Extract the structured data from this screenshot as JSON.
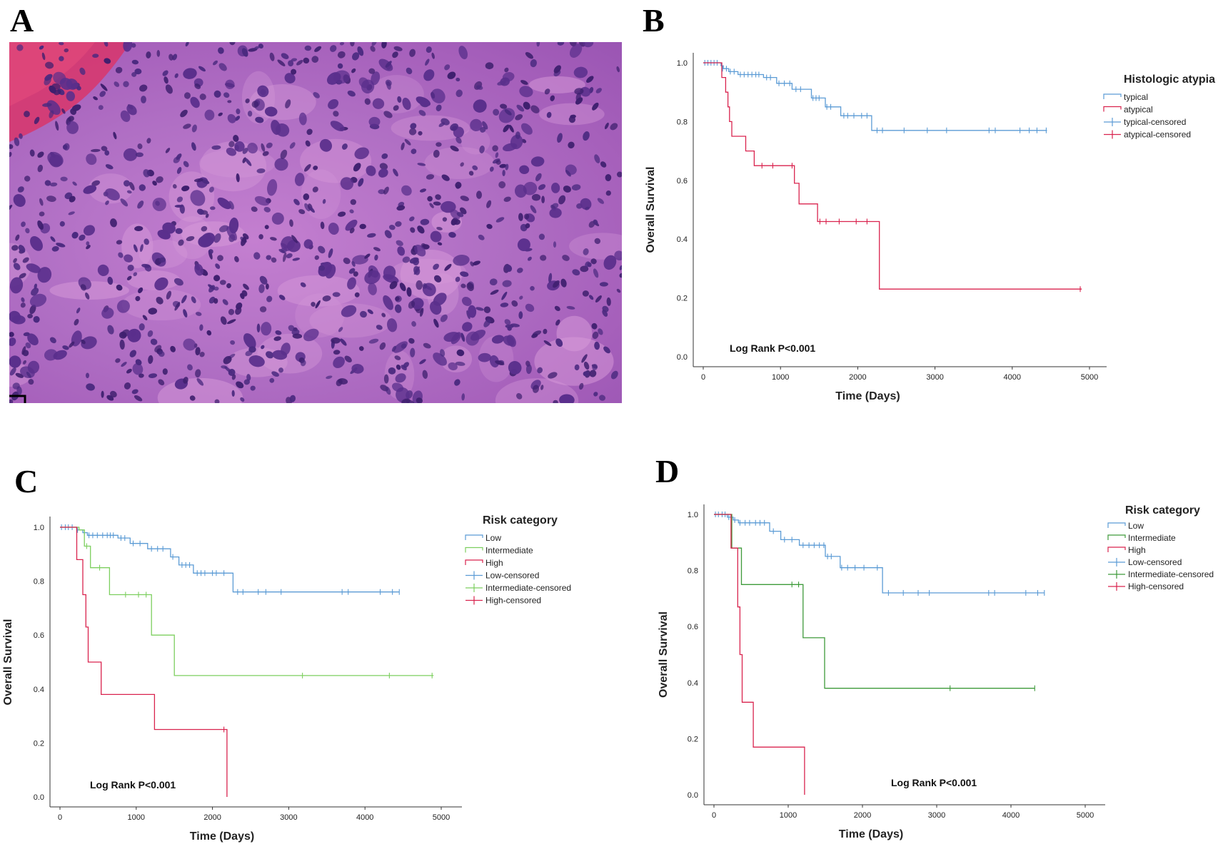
{
  "panels": {
    "A": {
      "letter": "A"
    },
    "B": {
      "letter": "B"
    },
    "C": {
      "letter": "C"
    },
    "D": {
      "letter": "D"
    }
  },
  "chart_data": [
    {
      "panel": "B",
      "type": "line",
      "step": true,
      "xlabel": "Time (Days)",
      "ylabel": "Overall Survival",
      "xlim": [
        0,
        5000
      ],
      "ylim": [
        0,
        1.0
      ],
      "xticks": [
        0,
        1000,
        2000,
        3000,
        4000,
        5000
      ],
      "yticks": [
        0.0,
        0.2,
        0.4,
        0.6,
        0.8,
        1.0
      ],
      "annotation": "Log Rank P<0.001",
      "legend_title": "Histologic atypia",
      "legend": [
        "typical",
        "atypical",
        "typical-censored",
        "atypical-censored"
      ],
      "legend_position": "top-right",
      "series": [
        {
          "name": "typical",
          "color": "#5b9bd5",
          "steps": [
            [
              0,
              1.0
            ],
            [
              230,
              0.99
            ],
            [
              260,
              0.98
            ],
            [
              330,
              0.97
            ],
            [
              450,
              0.96
            ],
            [
              780,
              0.95
            ],
            [
              950,
              0.93
            ],
            [
              1150,
              0.91
            ],
            [
              1400,
              0.88
            ],
            [
              1580,
              0.85
            ],
            [
              1780,
              0.82
            ],
            [
              2180,
              0.77
            ],
            [
              4450,
              0.77
            ]
          ],
          "censored": [
            [
              20,
              1.0
            ],
            [
              60,
              1.0
            ],
            [
              100,
              1.0
            ],
            [
              140,
              1.0
            ],
            [
              180,
              1.0
            ],
            [
              250,
              0.98
            ],
            [
              300,
              0.98
            ],
            [
              350,
              0.97
            ],
            [
              400,
              0.97
            ],
            [
              480,
              0.96
            ],
            [
              530,
              0.96
            ],
            [
              580,
              0.96
            ],
            [
              630,
              0.96
            ],
            [
              680,
              0.96
            ],
            [
              720,
              0.96
            ],
            [
              820,
              0.95
            ],
            [
              870,
              0.95
            ],
            [
              980,
              0.93
            ],
            [
              1050,
              0.93
            ],
            [
              1120,
              0.93
            ],
            [
              1200,
              0.91
            ],
            [
              1260,
              0.91
            ],
            [
              1420,
              0.88
            ],
            [
              1460,
              0.88
            ],
            [
              1500,
              0.88
            ],
            [
              1600,
              0.85
            ],
            [
              1650,
              0.85
            ],
            [
              1820,
              0.82
            ],
            [
              1870,
              0.82
            ],
            [
              1950,
              0.82
            ],
            [
              2050,
              0.82
            ],
            [
              2120,
              0.82
            ],
            [
              2250,
              0.77
            ],
            [
              2320,
              0.77
            ],
            [
              2600,
              0.77
            ],
            [
              2900,
              0.77
            ],
            [
              3150,
              0.77
            ],
            [
              3700,
              0.77
            ],
            [
              3780,
              0.77
            ],
            [
              4100,
              0.77
            ],
            [
              4220,
              0.77
            ],
            [
              4320,
              0.77
            ],
            [
              4440,
              0.77
            ]
          ]
        },
        {
          "name": "atypical",
          "color": "#d9234e",
          "steps": [
            [
              0,
              1.0
            ],
            [
              240,
              0.95
            ],
            [
              290,
              0.9
            ],
            [
              320,
              0.85
            ],
            [
              340,
              0.8
            ],
            [
              370,
              0.75
            ],
            [
              550,
              0.7
            ],
            [
              660,
              0.65
            ],
            [
              1180,
              0.59
            ],
            [
              1240,
              0.52
            ],
            [
              1480,
              0.46
            ],
            [
              2280,
              0.23
            ],
            [
              4900,
              0.23
            ]
          ],
          "censored": [
            [
              760,
              0.65
            ],
            [
              900,
              0.65
            ],
            [
              1150,
              0.65
            ],
            [
              1510,
              0.46
            ],
            [
              1590,
              0.46
            ],
            [
              1760,
              0.46
            ],
            [
              1980,
              0.46
            ],
            [
              2120,
              0.46
            ],
            [
              4880,
              0.23
            ]
          ]
        }
      ]
    },
    {
      "panel": "C",
      "type": "line",
      "step": true,
      "xlabel": "Time (Days)",
      "ylabel": "Overall Survival",
      "xlim": [
        0,
        5000
      ],
      "ylim": [
        0,
        1.0
      ],
      "xticks": [
        0,
        1000,
        2000,
        3000,
        4000,
        5000
      ],
      "yticks": [
        0.0,
        0.2,
        0.4,
        0.6,
        0.8,
        1.0
      ],
      "annotation": "Log Rank P<0.001",
      "legend_title": "Risk category",
      "legend": [
        "Low",
        "Intermediate",
        "High",
        "Low-censored",
        "Intermediate-censored",
        "High-censored"
      ],
      "legend_position": "top-right",
      "series": [
        {
          "name": "Low",
          "color": "#5b9bd5",
          "steps": [
            [
              0,
              1.0
            ],
            [
              220,
              0.99
            ],
            [
              300,
              0.98
            ],
            [
              360,
              0.97
            ],
            [
              760,
              0.96
            ],
            [
              920,
              0.94
            ],
            [
              1150,
              0.92
            ],
            [
              1450,
              0.89
            ],
            [
              1560,
              0.86
            ],
            [
              1750,
              0.83
            ],
            [
              2270,
              0.76
            ],
            [
              4450,
              0.76
            ]
          ],
          "censored": [
            [
              20,
              1.0
            ],
            [
              70,
              1.0
            ],
            [
              110,
              1.0
            ],
            [
              160,
              1.0
            ],
            [
              230,
              0.99
            ],
            [
              320,
              0.98
            ],
            [
              380,
              0.97
            ],
            [
              430,
              0.97
            ],
            [
              490,
              0.97
            ],
            [
              560,
              0.97
            ],
            [
              620,
              0.97
            ],
            [
              660,
              0.97
            ],
            [
              700,
              0.97
            ],
            [
              800,
              0.96
            ],
            [
              850,
              0.96
            ],
            [
              960,
              0.94
            ],
            [
              1050,
              0.94
            ],
            [
              1200,
              0.92
            ],
            [
              1280,
              0.92
            ],
            [
              1350,
              0.92
            ],
            [
              1480,
              0.89
            ],
            [
              1600,
              0.86
            ],
            [
              1650,
              0.86
            ],
            [
              1700,
              0.86
            ],
            [
              1800,
              0.83
            ],
            [
              1850,
              0.83
            ],
            [
              1900,
              0.83
            ],
            [
              2000,
              0.83
            ],
            [
              2050,
              0.83
            ],
            [
              2150,
              0.83
            ],
            [
              2330,
              0.76
            ],
            [
              2400,
              0.76
            ],
            [
              2600,
              0.76
            ],
            [
              2700,
              0.76
            ],
            [
              2900,
              0.76
            ],
            [
              3700,
              0.76
            ],
            [
              3780,
              0.76
            ],
            [
              4200,
              0.76
            ],
            [
              4360,
              0.76
            ],
            [
              4450,
              0.76
            ]
          ]
        },
        {
          "name": "Intermediate",
          "color": "#7dcf5f",
          "steps": [
            [
              0,
              1.0
            ],
            [
              250,
              0.99
            ],
            [
              320,
              0.93
            ],
            [
              400,
              0.85
            ],
            [
              650,
              0.75
            ],
            [
              1200,
              0.6
            ],
            [
              1500,
              0.45
            ],
            [
              4900,
              0.45
            ]
          ],
          "censored": [
            [
              350,
              0.93
            ],
            [
              520,
              0.85
            ],
            [
              860,
              0.75
            ],
            [
              1030,
              0.75
            ],
            [
              1130,
              0.75
            ],
            [
              3180,
              0.45
            ],
            [
              4320,
              0.45
            ],
            [
              4880,
              0.45
            ]
          ]
        },
        {
          "name": "High",
          "color": "#d9234e",
          "steps": [
            [
              0,
              1.0
            ],
            [
              220,
              0.88
            ],
            [
              300,
              0.75
            ],
            [
              340,
              0.63
            ],
            [
              370,
              0.5
            ],
            [
              540,
              0.38
            ],
            [
              1240,
              0.25
            ],
            [
              2190,
              0.0
            ]
          ],
          "censored": [
            [
              2150,
              0.25
            ]
          ]
        }
      ]
    },
    {
      "panel": "D",
      "type": "line",
      "step": true,
      "xlabel": "Time (Days)",
      "ylabel": "Overall Survival",
      "xlim": [
        0,
        5000
      ],
      "ylim": [
        0,
        1.0
      ],
      "xticks": [
        0,
        1000,
        2000,
        3000,
        4000,
        5000
      ],
      "yticks": [
        0.0,
        0.2,
        0.4,
        0.6,
        0.8,
        1.0
      ],
      "annotation": "Log Rank P<0.001",
      "legend_title": "Risk category",
      "legend": [
        "Low",
        "Intermediate",
        "High",
        "Low-censored",
        "Intermediate-censored",
        "High-censored"
      ],
      "legend_position": "top-right",
      "series": [
        {
          "name": "Low",
          "color": "#5b9bd5",
          "steps": [
            [
              0,
              1.0
            ],
            [
              180,
              0.99
            ],
            [
              260,
              0.98
            ],
            [
              330,
              0.97
            ],
            [
              750,
              0.94
            ],
            [
              900,
              0.91
            ],
            [
              1150,
              0.89
            ],
            [
              1500,
              0.85
            ],
            [
              1700,
              0.81
            ],
            [
              2270,
              0.72
            ],
            [
              4450,
              0.72
            ]
          ],
          "censored": [
            [
              20,
              1.0
            ],
            [
              60,
              1.0
            ],
            [
              110,
              1.0
            ],
            [
              150,
              1.0
            ],
            [
              200,
              0.99
            ],
            [
              280,
              0.98
            ],
            [
              350,
              0.97
            ],
            [
              420,
              0.97
            ],
            [
              480,
              0.97
            ],
            [
              560,
              0.97
            ],
            [
              620,
              0.97
            ],
            [
              680,
              0.97
            ],
            [
              800,
              0.94
            ],
            [
              950,
              0.91
            ],
            [
              1050,
              0.91
            ],
            [
              1200,
              0.89
            ],
            [
              1280,
              0.89
            ],
            [
              1350,
              0.89
            ],
            [
              1420,
              0.89
            ],
            [
              1480,
              0.89
            ],
            [
              1530,
              0.85
            ],
            [
              1580,
              0.85
            ],
            [
              1720,
              0.81
            ],
            [
              1800,
              0.81
            ],
            [
              1900,
              0.81
            ],
            [
              2020,
              0.81
            ],
            [
              2200,
              0.81
            ],
            [
              2350,
              0.72
            ],
            [
              2550,
              0.72
            ],
            [
              2750,
              0.72
            ],
            [
              2900,
              0.72
            ],
            [
              3700,
              0.72
            ],
            [
              3780,
              0.72
            ],
            [
              4200,
              0.72
            ],
            [
              4360,
              0.72
            ],
            [
              4450,
              0.72
            ]
          ]
        },
        {
          "name": "Intermediate",
          "color": "#3e9a3a",
          "steps": [
            [
              0,
              1.0
            ],
            [
              240,
              0.88
            ],
            [
              370,
              0.75
            ],
            [
              1200,
              0.56
            ],
            [
              1490,
              0.38
            ],
            [
              4320,
              0.38
            ]
          ],
          "censored": [
            [
              1050,
              0.75
            ],
            [
              1140,
              0.75
            ],
            [
              3180,
              0.38
            ],
            [
              4320,
              0.38
            ]
          ]
        },
        {
          "name": "High",
          "color": "#d9234e",
          "steps": [
            [
              0,
              1.0
            ],
            [
              230,
              0.88
            ],
            [
              320,
              0.67
            ],
            [
              350,
              0.5
            ],
            [
              380,
              0.33
            ],
            [
              530,
              0.17
            ],
            [
              1220,
              0.0
            ]
          ],
          "censored": []
        }
      ]
    }
  ]
}
